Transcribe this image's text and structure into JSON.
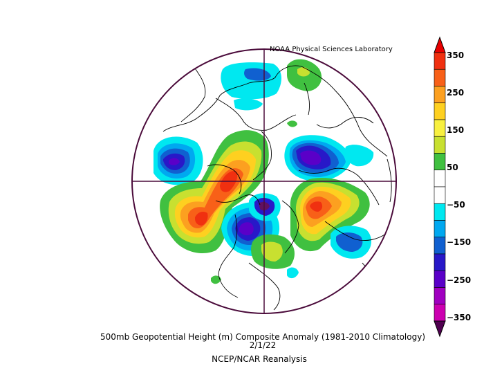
{
  "credit": "NOAA Physical Sciences Laboratory",
  "title": "500mb Geopotential Height (m) Composite Anomaly (1981-2010 Climatology)",
  "date": "2/1/22",
  "source": "NCEP/NCAR Reanalysis",
  "colorbar": {
    "labels": [
      "350",
      "250",
      "150",
      "50",
      "-50",
      "-150",
      "-250",
      "-350"
    ],
    "colors": [
      "#e8e8e8",
      "#f03010",
      "#f86018",
      "#fca020",
      "#fed020",
      "#f8f040",
      "#c8e030",
      "#40c040",
      "#ffffff",
      "#ffffff",
      "#00e8f0",
      "#00a8f0",
      "#1060d0",
      "#2818c8",
      "#5a00c8",
      "#a000c0",
      "#cc00b0",
      "#601060"
    ],
    "arrow_top_color": "#e80000",
    "arrow_bottom_color": "#500050"
  },
  "map": {
    "projection": "north polar stereographic",
    "border_color": "#4a0a3a",
    "coast_color": "#000000"
  },
  "anomalies": [
    {
      "region": "western North Pacific",
      "sign": "negative",
      "peak": -250
    },
    {
      "region": "northern Canada / Alaska",
      "sign": "positive",
      "peak": 350
    },
    {
      "region": "northeast Pacific",
      "sign": "positive",
      "peak": 300
    },
    {
      "region": "Hudson Bay / Canadian Arctic",
      "sign": "negative",
      "peak": -250
    },
    {
      "region": "Europe / Scandinavia",
      "sign": "negative",
      "peak": -300
    },
    {
      "region": "central Asia / Siberia",
      "sign": "positive",
      "peak": 300
    },
    {
      "region": "North Atlantic",
      "sign": "negative",
      "peak": -150
    },
    {
      "region": "Arctic Ocean",
      "sign": "negative",
      "peak": -300
    }
  ]
}
